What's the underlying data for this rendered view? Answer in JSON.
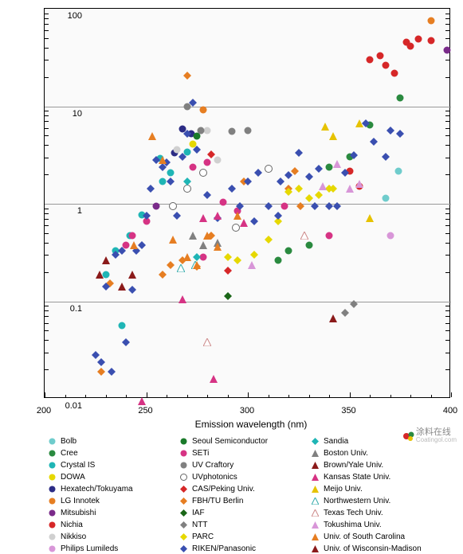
{
  "chart": {
    "type": "scatter",
    "xlabel": "Emission wavelength (nm)",
    "ylabel": "External quantum efficiency (%)",
    "xlim": [
      200,
      400
    ],
    "ylim": [
      0.01,
      100
    ],
    "yscale": "log",
    "xtick_step": 50,
    "xticks": [
      200,
      250,
      300,
      350,
      400
    ],
    "yticks": [
      0.01,
      0.1,
      1,
      10,
      100
    ],
    "ytick_labels": [
      "0.01",
      "0.1",
      "1",
      "10",
      "100"
    ],
    "background_color": "#fafafa",
    "grid_color": "#999999",
    "label_fontsize": 12,
    "tick_fontsize": 11,
    "legend_fontsize": 10,
    "series": [
      {
        "name": "Bolb",
        "marker": "circle",
        "color": "#6fcccc",
        "points": [
          [
            368,
            1.2
          ],
          [
            374,
            2.3
          ]
        ]
      },
      {
        "name": "Cree",
        "marker": "circle",
        "color": "#2a8a3f",
        "points": [
          [
            315,
            0.28
          ],
          [
            320,
            0.35
          ],
          [
            330,
            0.4
          ],
          [
            340,
            2.5
          ],
          [
            350,
            3.2
          ],
          [
            360,
            6.8
          ],
          [
            375,
            13
          ]
        ]
      },
      {
        "name": "Crystal IS",
        "marker": "circle",
        "color": "#1fb5b5",
        "points": [
          [
            230,
            0.2
          ],
          [
            235,
            0.35
          ],
          [
            238,
            0.06
          ],
          [
            242,
            0.5
          ],
          [
            248,
            0.82
          ],
          [
            258,
            1.8
          ],
          [
            262,
            2.2
          ],
          [
            257,
            3.1
          ],
          [
            270,
            3.6
          ]
        ]
      },
      {
        "name": "DOWA",
        "marker": "circle",
        "color": "#e6d800",
        "points": [
          [
            273,
            4.3
          ]
        ]
      },
      {
        "name": "Hexatech/Tokuyama",
        "marker": "circle",
        "color": "#2c2c85",
        "points": [
          [
            264,
            3.5
          ],
          [
            268,
            6.2
          ],
          [
            272,
            5.5
          ]
        ]
      },
      {
        "name": "LG Innotek",
        "marker": "circle",
        "color": "#e67e22",
        "points": [
          [
            278,
            9.8
          ],
          [
            390,
            80
          ]
        ]
      },
      {
        "name": "Mitsubishi",
        "marker": "circle",
        "color": "#7a2b8a",
        "points": [
          [
            255,
            1.0
          ],
          [
            398,
            40
          ]
        ]
      },
      {
        "name": "Nichia",
        "marker": "circle",
        "color": "#d62728",
        "points": [
          [
            350,
            2.3
          ],
          [
            355,
            1.6
          ],
          [
            360,
            32
          ],
          [
            365,
            35
          ],
          [
            368,
            28
          ],
          [
            372,
            23
          ],
          [
            378,
            48
          ],
          [
            380,
            44
          ],
          [
            384,
            52
          ],
          [
            390,
            50
          ]
        ]
      },
      {
        "name": "Nikkiso",
        "marker": "circle",
        "color": "#d0d0d0",
        "points": [
          [
            265,
            3.8
          ],
          [
            280,
            6.0
          ],
          [
            285,
            3.0
          ]
        ]
      },
      {
        "name": "Philips Lumileds",
        "marker": "circle",
        "color": "#d896d8",
        "points": [
          [
            370,
            0.5
          ]
        ]
      },
      {
        "name": "Seoul Semiconductor",
        "marker": "circle",
        "color": "#1a7a2a",
        "points": [
          [
            275,
            5.2
          ]
        ]
      },
      {
        "name": "SETi",
        "marker": "circle",
        "color": "#d63384",
        "points": [
          [
            240,
            0.4
          ],
          [
            243,
            0.5
          ],
          [
            250,
            0.7
          ],
          [
            273,
            2.5
          ],
          [
            278,
            0.3
          ],
          [
            280,
            2.8
          ],
          [
            288,
            1.1
          ],
          [
            295,
            0.9
          ],
          [
            318,
            1.0
          ],
          [
            340,
            0.5
          ]
        ]
      },
      {
        "name": "UV Craftory",
        "marker": "circle",
        "color": "#808080",
        "points": [
          [
            270,
            10.5
          ],
          [
            277,
            6.0
          ],
          [
            292,
            5.8
          ],
          [
            300,
            6.0
          ]
        ]
      },
      {
        "name": "UVphotonics",
        "marker": "circle",
        "color": "#ffffff",
        "stroke": "#666",
        "points": [
          [
            263,
            1.0
          ],
          [
            270,
            1.5
          ],
          [
            278,
            2.2
          ],
          [
            294,
            0.6
          ],
          [
            310,
            2.4
          ]
        ]
      },
      {
        "name": "CAS/Peking Univ.",
        "marker": "diamond",
        "color": "#d62728",
        "points": [
          [
            282,
            3.4
          ],
          [
            290,
            0.22
          ]
        ]
      },
      {
        "name": "FBH/TU Berlin",
        "marker": "diamond",
        "color": "#e67e22",
        "points": [
          [
            228,
            0.02
          ],
          [
            232,
            0.16
          ],
          [
            258,
            0.2
          ],
          [
            262,
            0.25
          ],
          [
            268,
            0.28
          ],
          [
            270,
            22
          ],
          [
            275,
            0.24
          ],
          [
            282,
            0.5
          ],
          [
            298,
            1.8
          ],
          [
            320,
            1.5
          ],
          [
            323,
            2.3
          ],
          [
            326,
            1.0
          ]
        ]
      },
      {
        "name": "IAF",
        "marker": "diamond",
        "color": "#1a6618",
        "points": [
          [
            290,
            0.12
          ]
        ]
      },
      {
        "name": "NTT",
        "marker": "diamond",
        "color": "#808080",
        "points": [
          [
            348,
            0.08
          ],
          [
            352,
            0.1
          ]
        ]
      },
      {
        "name": "PARC",
        "marker": "diamond",
        "color": "#e6d800",
        "points": [
          [
            290,
            0.3
          ],
          [
            295,
            0.28
          ],
          [
            303,
            0.32
          ],
          [
            310,
            0.45
          ],
          [
            315,
            0.7
          ],
          [
            320,
            1.4
          ],
          [
            325,
            1.5
          ],
          [
            330,
            1.2
          ],
          [
            335,
            1.3
          ],
          [
            340,
            1.5
          ],
          [
            342,
            1.5
          ]
        ]
      },
      {
        "name": "RIKEN/Panasonic",
        "marker": "diamond",
        "color": "#3a4fb0",
        "points": [
          [
            225,
            0.03
          ],
          [
            228,
            0.025
          ],
          [
            230,
            0.15
          ],
          [
            233,
            0.02
          ],
          [
            235,
            0.32
          ],
          [
            238,
            0.35
          ],
          [
            240,
            0.04
          ],
          [
            243,
            0.14
          ],
          [
            245,
            0.35
          ],
          [
            248,
            0.4
          ],
          [
            250,
            0.8
          ],
          [
            252,
            1.5
          ],
          [
            255,
            3.0
          ],
          [
            258,
            2.5
          ],
          [
            260,
            2.8
          ],
          [
            262,
            1.8
          ],
          [
            265,
            0.8
          ],
          [
            268,
            3.2
          ],
          [
            270,
            5.5
          ],
          [
            273,
            11.5
          ],
          [
            275,
            3.8
          ],
          [
            280,
            1.3
          ],
          [
            285,
            0.75
          ],
          [
            292,
            1.5
          ],
          [
            296,
            1.0
          ],
          [
            300,
            1.8
          ],
          [
            303,
            0.7
          ],
          [
            305,
            2.2
          ],
          [
            310,
            1.0
          ],
          [
            315,
            0.8
          ],
          [
            316,
            1.8
          ],
          [
            320,
            2.1
          ],
          [
            325,
            3.5
          ],
          [
            330,
            2.0
          ],
          [
            333,
            1.0
          ],
          [
            335,
            2.4
          ],
          [
            340,
            1.0
          ],
          [
            344,
            1.0
          ],
          [
            348,
            2.2
          ],
          [
            352,
            3.3
          ],
          [
            358,
            7.0
          ],
          [
            362,
            4.6
          ],
          [
            368,
            3.2
          ],
          [
            370,
            6.0
          ],
          [
            375,
            5.5
          ]
        ]
      },
      {
        "name": "Sandia",
        "marker": "diamond",
        "color": "#1fb5b5",
        "points": [
          [
            270,
            1.8
          ],
          [
            275,
            0.3
          ]
        ]
      },
      {
        "name": "Boston Univ.",
        "marker": "triangle",
        "color": "#808080",
        "points": [
          [
            273,
            0.5
          ],
          [
            278,
            0.4
          ],
          [
            285,
            0.42
          ]
        ]
      },
      {
        "name": "Brown/Yale Univ.",
        "marker": "triangle",
        "color": "#8b1a1a",
        "points": [
          [
            227,
            0.2
          ],
          [
            230,
            0.28
          ],
          [
            342,
            0.07
          ]
        ]
      },
      {
        "name": "Kansas State Univ.",
        "marker": "triangle",
        "color": "#d63384",
        "points": [
          [
            248,
            0.01
          ],
          [
            268,
            0.11
          ],
          [
            278,
            0.75
          ],
          [
            283,
            0.017
          ],
          [
            285,
            0.8
          ],
          [
            298,
            0.68
          ]
        ]
      },
      {
        "name": "Meijo Univ.",
        "marker": "triangle",
        "color": "#e6c200",
        "points": [
          [
            338,
            6.5
          ],
          [
            342,
            5.2
          ],
          [
            355,
            7.0
          ],
          [
            360,
            0.75
          ]
        ]
      },
      {
        "name": "Northwestern Univ.",
        "marker": "triangle",
        "color": "#ffffff",
        "stroke": "#3aa",
        "points": [
          [
            267,
            0.23
          ],
          [
            274,
            0.25
          ]
        ]
      },
      {
        "name": "Texas Tech Univ.",
        "marker": "triangle",
        "color": "#ffffff",
        "stroke": "#c88",
        "points": [
          [
            280,
            0.04
          ],
          [
            328,
            0.5
          ]
        ]
      },
      {
        "name": "Tokushima Univ.",
        "marker": "triangle",
        "color": "#d896d8",
        "points": [
          [
            302,
            0.25
          ],
          [
            337,
            1.6
          ],
          [
            344,
            2.7
          ],
          [
            350,
            1.5
          ],
          [
            355,
            1.7
          ]
        ]
      },
      {
        "name": "Univ. of South Carolina",
        "marker": "triangle",
        "color": "#e67e22",
        "points": [
          [
            244,
            0.4
          ],
          [
            253,
            5.2
          ],
          [
            258,
            3.0
          ],
          [
            263,
            0.45
          ],
          [
            270,
            0.3
          ],
          [
            275,
            0.25
          ],
          [
            280,
            0.5
          ],
          [
            285,
            0.38
          ],
          [
            295,
            0.8
          ]
        ]
      },
      {
        "name": "Univ. of Wisconsin-Madison",
        "marker": "triangle",
        "color": "#8b1a1a",
        "points": [
          [
            238,
            0.15
          ],
          [
            243,
            0.2
          ]
        ]
      }
    ]
  },
  "watermark": {
    "text": "涂料在线",
    "sub": "Coatingol.com"
  }
}
